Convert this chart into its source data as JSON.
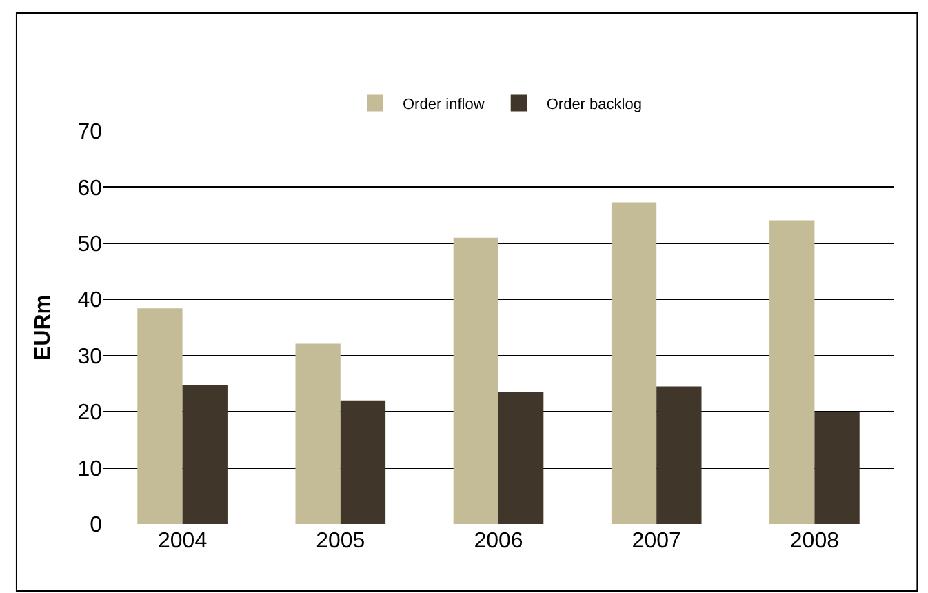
{
  "chart_data": {
    "type": "bar",
    "ylabel": "EURm",
    "categories": [
      "2004",
      "2005",
      "2006",
      "2007",
      "2008"
    ],
    "series": [
      {
        "name": "Order inflow",
        "color": "#c4bc96",
        "values": [
          38.4,
          32.1,
          51.0,
          57.3,
          54.1
        ]
      },
      {
        "name": "Order backlog",
        "color": "#40362a",
        "values": [
          24.8,
          22.0,
          23.5,
          24.5,
          20.0
        ]
      }
    ],
    "ylim": [
      0,
      70
    ],
    "yticks": [
      0,
      10,
      20,
      30,
      40,
      50,
      60,
      70
    ],
    "grid": "y",
    "legend": "top"
  }
}
